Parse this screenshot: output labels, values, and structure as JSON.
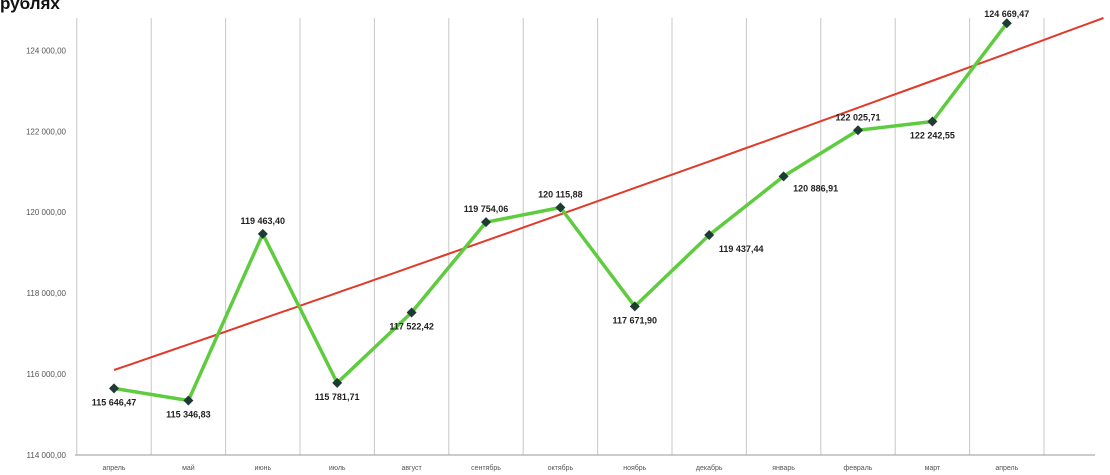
{
  "title": "рублях",
  "chart_data": {
    "type": "line",
    "title": "рублях",
    "xlabel": "",
    "ylabel": "",
    "ylim": [
      114000,
      124800
    ],
    "yticks": [
      "114 000,00",
      "116 000,00",
      "118 000,00",
      "120 000,00",
      "122 000,00",
      "124 000,00"
    ],
    "categories": [
      "апрель",
      "май",
      "июнь",
      "июль",
      "август",
      "сентябрь",
      "октябрь",
      "ноябрь",
      "декабрь",
      "январь",
      "февраль",
      "март",
      "апрель"
    ],
    "values": [
      115646.47,
      115346.83,
      119463.4,
      115781.71,
      117522.42,
      119754.06,
      120115.88,
      117671.9,
      119437.44,
      120886.91,
      122025.71,
      122242.55,
      124669.47
    ],
    "labels": [
      "115 646,47",
      "115 346,83",
      "119 463,40",
      "115 781,71",
      "117 522,42",
      "119 754,06",
      "120 115,88",
      "117 671,90",
      "119 437,44",
      "120 886,91",
      "122 025,71",
      "122 242,55",
      "124 669,47"
    ],
    "trend": {
      "x_start": 0,
      "y_start": 116100,
      "x_end": 13.3,
      "y_end": 124800
    },
    "grid": true,
    "colors": {
      "series": "#5fcc3f",
      "trend": "#e03a2a",
      "marker": "#1e3b33",
      "grid": "#c8c8c8"
    }
  }
}
